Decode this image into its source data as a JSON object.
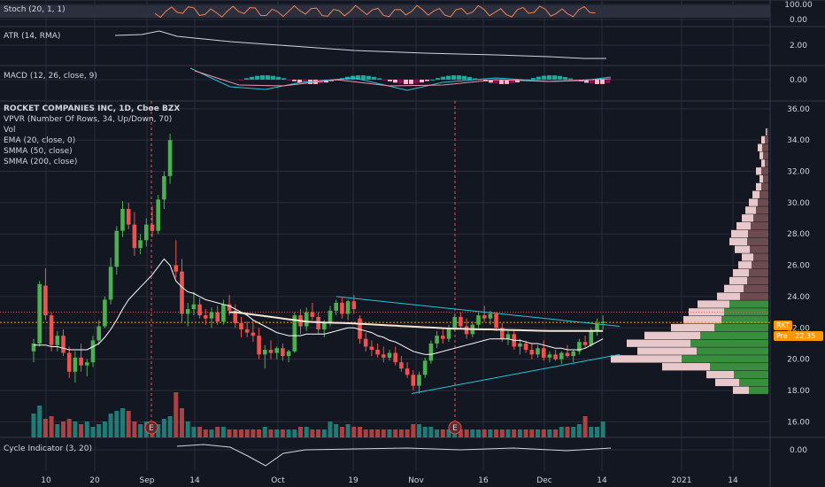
{
  "symbol_tag": "RKT",
  "pre_label": "Pre",
  "pre_price": "22.35",
  "legend": {
    "title": "ROCKET COMPANIES INC, 1D, Cboe BZX",
    "lines": [
      "VPVR (Number Of Rows, 34, Up/Down, 70)",
      "Vol",
      "EMA (20, close, 0)",
      "SMMA (50, close)",
      "SMMA (200, close)"
    ]
  },
  "panes": {
    "stoch": {
      "label": "Stoch (20, 1, 1)",
      "ticks": [
        "100.00",
        "0.00"
      ]
    },
    "atr": {
      "label": "ATR (14, RMA)",
      "ticks": [
        "2.00"
      ]
    },
    "macd": {
      "label": "MACD (12, 26, close, 9)",
      "ticks": [
        "0.00"
      ]
    },
    "cycle": {
      "label": "Cycle Indicator (3, 20)",
      "ticks": [
        "0.00"
      ]
    }
  },
  "earnings_marker": "E",
  "colors": {
    "up": "#26a69a",
    "up_bright": "#4caf50",
    "down": "#ef5350",
    "down_dark": "#880e4f",
    "ema": "#f4e7d3",
    "smma": "#ffffff",
    "trendline": "#26c6da",
    "price_line": "#ff9800",
    "grid": "#2a2e39",
    "bg": "#131722"
  },
  "chart_data": {
    "type": "candlestick",
    "title": "ROCKET COMPANIES INC, 1D, Cboe BZX",
    "ylim": [
      15,
      36.5
    ],
    "yticks": [
      16,
      18,
      20,
      22,
      24,
      26,
      28,
      30,
      32,
      34,
      36
    ],
    "ytick_labels": [
      "16.00",
      "18.00",
      "20.00",
      "22.00",
      "24.00",
      "26.00",
      "28.00",
      "30.00",
      "32.00",
      "34.00",
      "36.00"
    ],
    "x_labels": [
      "10",
      "20",
      "Sep",
      "14",
      "Oct",
      "19",
      "Nov",
      "16",
      "Dec",
      "14",
      "2021",
      "14"
    ],
    "current_price": 22.35,
    "candles": [
      [
        20.5,
        21.3,
        19.8,
        21.0
      ],
      [
        21.0,
        25.0,
        20.8,
        24.8
      ],
      [
        24.7,
        25.8,
        22.5,
        22.8
      ],
      [
        22.8,
        23.0,
        20.5,
        20.9
      ],
      [
        20.9,
        21.8,
        20.5,
        21.5
      ],
      [
        21.5,
        21.9,
        20.2,
        20.4
      ],
      [
        20.4,
        20.8,
        18.8,
        19.2
      ],
      [
        19.2,
        20.5,
        18.5,
        20.1
      ],
      [
        20.1,
        21.0,
        19.2,
        19.6
      ],
      [
        19.6,
        20.0,
        18.9,
        19.8
      ],
      [
        19.8,
        21.5,
        19.5,
        21.2
      ],
      [
        21.2,
        22.5,
        20.9,
        22.1
      ],
      [
        22.1,
        24.0,
        22.0,
        23.8
      ],
      [
        23.8,
        26.5,
        23.5,
        25.9
      ],
      [
        25.9,
        28.5,
        25.4,
        28.2
      ],
      [
        28.2,
        30.1,
        27.8,
        29.6
      ],
      [
        29.6,
        30.0,
        28.3,
        28.6
      ],
      [
        28.6,
        29.4,
        26.6,
        27.1
      ],
      [
        27.1,
        28.0,
        26.7,
        27.6
      ],
      [
        27.6,
        29.0,
        27.2,
        28.6
      ],
      [
        28.6,
        29.8,
        27.8,
        28.2
      ],
      [
        28.2,
        30.5,
        28.0,
        30.2
      ],
      [
        30.2,
        32.0,
        29.6,
        31.7
      ],
      [
        31.7,
        34.4,
        31.2,
        34.0
      ],
      [
        26.0,
        27.6,
        25.2,
        25.6
      ],
      [
        25.6,
        26.4,
        22.4,
        22.9
      ],
      [
        22.9,
        23.6,
        22.1,
        23.2
      ],
      [
        23.2,
        24.3,
        22.8,
        23.5
      ],
      [
        23.5,
        23.9,
        22.6,
        22.8
      ],
      [
        22.8,
        23.2,
        22.2,
        22.6
      ],
      [
        22.6,
        23.3,
        22.0,
        23.0
      ],
      [
        23.0,
        23.4,
        22.2,
        22.4
      ],
      [
        22.4,
        23.8,
        22.2,
        23.5
      ],
      [
        23.5,
        24.1,
        22.8,
        23.1
      ],
      [
        23.1,
        23.5,
        22.0,
        22.3
      ],
      [
        22.3,
        22.7,
        21.4,
        21.9
      ],
      [
        21.9,
        22.4,
        21.4,
        21.7
      ],
      [
        21.7,
        22.5,
        21.1,
        21.5
      ],
      [
        21.5,
        22.0,
        20.0,
        20.3
      ],
      [
        20.3,
        20.9,
        19.4,
        20.6
      ],
      [
        20.6,
        21.2,
        20.0,
        20.4
      ],
      [
        20.4,
        20.8,
        20.0,
        20.7
      ],
      [
        20.7,
        21.0,
        19.9,
        20.2
      ],
      [
        20.2,
        20.6,
        19.8,
        20.5
      ],
      [
        20.5,
        23.0,
        20.4,
        22.8
      ],
      [
        22.8,
        23.2,
        21.6,
        22.1
      ],
      [
        22.1,
        23.3,
        21.8,
        23.0
      ],
      [
        23.0,
        23.6,
        22.5,
        22.7
      ],
      [
        22.7,
        23.0,
        21.6,
        21.9
      ],
      [
        21.9,
        22.5,
        21.4,
        22.3
      ],
      [
        22.3,
        23.4,
        22.1,
        23.1
      ],
      [
        23.1,
        23.8,
        22.8,
        23.6
      ],
      [
        23.6,
        24.0,
        22.6,
        22.9
      ],
      [
        22.9,
        23.8,
        22.5,
        23.7
      ],
      [
        23.7,
        24.1,
        22.9,
        23.2
      ],
      [
        22.6,
        22.8,
        21.0,
        21.3
      ],
      [
        21.3,
        21.7,
        20.5,
        20.8
      ],
      [
        20.8,
        21.2,
        20.2,
        20.6
      ],
      [
        20.6,
        21.0,
        20.1,
        20.3
      ],
      [
        20.3,
        20.8,
        19.8,
        20.1
      ],
      [
        20.1,
        20.6,
        19.9,
        20.4
      ],
      [
        20.4,
        20.8,
        19.6,
        19.8
      ],
      [
        19.8,
        20.2,
        19.2,
        19.4
      ],
      [
        19.4,
        19.8,
        18.8,
        19.0
      ],
      [
        19.0,
        19.3,
        18.0,
        18.3
      ],
      [
        18.3,
        19.2,
        17.8,
        19.0
      ],
      [
        19.0,
        20.1,
        18.8,
        19.9
      ],
      [
        19.9,
        21.2,
        19.7,
        21.0
      ],
      [
        21.0,
        21.8,
        20.7,
        21.5
      ],
      [
        21.5,
        22.0,
        21.0,
        21.3
      ],
      [
        21.3,
        22.2,
        21.1,
        22.0
      ],
      [
        22.0,
        22.9,
        21.8,
        22.7
      ],
      [
        22.7,
        23.0,
        21.9,
        22.1
      ],
      [
        22.1,
        22.6,
        21.3,
        21.6
      ],
      [
        21.6,
        22.4,
        21.4,
        22.2
      ],
      [
        22.2,
        23.0,
        22.0,
        22.8
      ],
      [
        22.8,
        23.4,
        22.4,
        22.6
      ],
      [
        22.6,
        23.1,
        22.2,
        22.9
      ],
      [
        22.9,
        23.0,
        21.8,
        22.0
      ],
      [
        22.0,
        22.3,
        21.1,
        21.3
      ],
      [
        21.3,
        21.8,
        20.9,
        21.6
      ],
      [
        21.6,
        21.9,
        20.6,
        20.8
      ],
      [
        20.8,
        21.3,
        20.3,
        21.0
      ],
      [
        21.0,
        21.2,
        20.4,
        20.6
      ],
      [
        20.6,
        21.0,
        20.0,
        20.3
      ],
      [
        20.3,
        20.9,
        20.1,
        20.7
      ],
      [
        20.7,
        21.2,
        19.9,
        20.1
      ],
      [
        20.1,
        20.5,
        19.8,
        20.3
      ],
      [
        20.3,
        20.6,
        19.9,
        20.0
      ],
      [
        20.0,
        20.5,
        19.7,
        20.4
      ],
      [
        20.4,
        20.9,
        20.1,
        20.2
      ],
      [
        20.2,
        20.6,
        19.8,
        20.5
      ],
      [
        20.5,
        21.3,
        20.3,
        21.1
      ],
      [
        21.1,
        21.5,
        20.7,
        20.9
      ],
      [
        20.9,
        22.0,
        20.8,
        21.8
      ],
      [
        21.8,
        22.6,
        21.5,
        22.3
      ],
      [
        22.3,
        22.8,
        21.9,
        22.4
      ]
    ],
    "volume": [
      9,
      12,
      7,
      8,
      5,
      6,
      7,
      6,
      5,
      6,
      4,
      5,
      6,
      9,
      10,
      11,
      10,
      6,
      5,
      6,
      5,
      5,
      7,
      8,
      17,
      11,
      6,
      4,
      4,
      3,
      3,
      4,
      4,
      3,
      3,
      3,
      3,
      3,
      3,
      4,
      3,
      3,
      3,
      3,
      3,
      4,
      4,
      3,
      3,
      3,
      6,
      5,
      4,
      5,
      4,
      4,
      3,
      3,
      3,
      3,
      3,
      3,
      3,
      3,
      5,
      5,
      4,
      4,
      3,
      3,
      3,
      3,
      3,
      3,
      3,
      3,
      3,
      3,
      3,
      3,
      3,
      3,
      3,
      3,
      3,
      3,
      3,
      3,
      3,
      4,
      4,
      4,
      5,
      8,
      4,
      4,
      6
    ],
    "ema": [
      20.9,
      20.9,
      20.9,
      20.8,
      20.8,
      20.7,
      20.6,
      20.6,
      20.6,
      20.6,
      20.8,
      21.0,
      21.4,
      21.9,
      22.5,
      23.2,
      23.8,
      24.2,
      24.6,
      25.0,
      25.4,
      25.9,
      26.4,
      26.0,
      25.0,
      24.6,
      24.3,
      24.2,
      24.0,
      23.8,
      23.7,
      23.6,
      23.5,
      23.4,
      23.2,
      23.0,
      22.8,
      22.5,
      22.3,
      22.1,
      21.9,
      21.7,
      21.6,
      21.5,
      21.5,
      21.5,
      21.6,
      21.6,
      21.6,
      21.6,
      21.7,
      21.8,
      21.9,
      22.0,
      22.0,
      21.9,
      21.8,
      21.7,
      21.5,
      21.4,
      21.2,
      21.1,
      20.9,
      20.7,
      20.5,
      20.4,
      20.3,
      20.3,
      20.4,
      20.5,
      20.6,
      20.7,
      20.8,
      20.9,
      21.0,
      21.1,
      21.2,
      21.3,
      21.3,
      21.3,
      21.3,
      21.2,
      21.2,
      21.1,
      21.0,
      21.0,
      20.9,
      20.8,
      20.7,
      20.7,
      20.6,
      20.6,
      20.6,
      20.7,
      20.9,
      21.1,
      21.3
    ],
    "smma": [
      null,
      null,
      null,
      null,
      null,
      null,
      null,
      null,
      null,
      null,
      null,
      null,
      null,
      null,
      null,
      null,
      null,
      null,
      null,
      null,
      null,
      null,
      null,
      null,
      null,
      null,
      null,
      null,
      null,
      null,
      null,
      null,
      null,
      23.0,
      23.0,
      22.95,
      22.9,
      22.85,
      22.8,
      22.75,
      22.7,
      22.65,
      22.6,
      22.55,
      22.5,
      22.45,
      22.4,
      22.38,
      22.36,
      22.34,
      22.33,
      22.32,
      22.31,
      22.3,
      22.28,
      22.26,
      22.24,
      22.22,
      22.2,
      22.18,
      22.16,
      22.14,
      22.12,
      22.1,
      22.08,
      22.06,
      22.04,
      22.02,
      22.0,
      21.98,
      21.96,
      21.95,
      21.94,
      21.93,
      21.92,
      21.91,
      21.9,
      21.9,
      21.89,
      21.88,
      21.87,
      21.86,
      21.85,
      21.84,
      21.83,
      21.82,
      21.81,
      21.8,
      21.8,
      21.8,
      21.8,
      21.8,
      21.8,
      21.8,
      21.8,
      21.8,
      21.8
    ]
  }
}
